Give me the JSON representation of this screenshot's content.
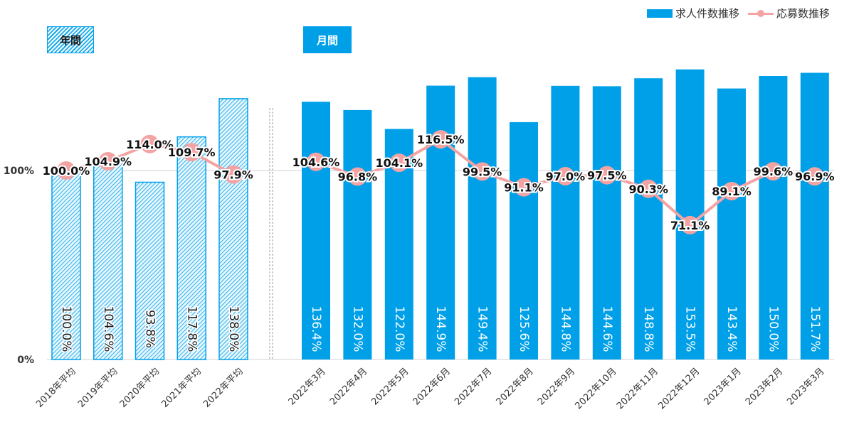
{
  "legend": {
    "bar_label": "求人件数推移",
    "line_label": "応募数推移"
  },
  "tags": {
    "annual": "年間",
    "monthly": "月間"
  },
  "colors": {
    "bar": "#00a0e9",
    "line": "#f4a3a3",
    "grid": "#d0d0d0",
    "hatch_bg": "#e6f6fd"
  },
  "chart_data": [
    {
      "type": "bar",
      "panel": "年間",
      "categories": [
        "2018年平均",
        "2019年平均",
        "2020年平均",
        "2021年平均",
        "2022年平均"
      ],
      "series": [
        {
          "name": "求人件数推移",
          "type": "bar",
          "values": [
            100.0,
            104.6,
            93.8,
            117.8,
            138.0
          ],
          "labels": [
            "100.0%",
            "104.6%",
            "93.8%",
            "117.8%",
            "138.0%"
          ],
          "style": "hatched"
        },
        {
          "name": "応募数推移",
          "type": "line",
          "values": [
            100.0,
            104.9,
            114.0,
            109.7,
            97.9
          ],
          "labels": [
            "100.0%",
            "104.9%",
            "114.0%",
            "109.7%",
            "97.9%"
          ]
        }
      ],
      "yticks": [
        "0%",
        "100%"
      ],
      "ylim": [
        0,
        150
      ]
    },
    {
      "type": "bar",
      "panel": "月間",
      "categories": [
        "2022年3月",
        "2022年4月",
        "2022年5月",
        "2022年6月",
        "2022年7月",
        "2022年8月",
        "2022年9月",
        "2022年10月",
        "2022年11月",
        "2022年12月",
        "2023年1月",
        "2023年2月",
        "2023年3月"
      ],
      "series": [
        {
          "name": "求人件数推移",
          "type": "bar",
          "values": [
            136.4,
            132.0,
            122.0,
            144.9,
            149.4,
            125.6,
            144.8,
            144.6,
            148.8,
            153.5,
            143.4,
            150.0,
            151.7
          ],
          "labels": [
            "136.4%",
            "132.0%",
            "122.0%",
            "144.9%",
            "149.4%",
            "125.6%",
            "144.8%",
            "144.6%",
            "148.8%",
            "153.5%",
            "143.4%",
            "150.0%",
            "151.7%"
          ],
          "style": "solid"
        },
        {
          "name": "応募数推移",
          "type": "line",
          "values": [
            104.6,
            96.8,
            104.1,
            116.5,
            99.5,
            91.1,
            97.0,
            97.5,
            90.3,
            71.1,
            89.1,
            99.6,
            96.9
          ],
          "labels": [
            "104.6%",
            "96.8%",
            "104.1%",
            "116.5%",
            "99.5%",
            "91.1%",
            "97.0%",
            "97.5%",
            "90.3%",
            "71.1%",
            "89.1%",
            "99.6%",
            "96.9%"
          ]
        }
      ],
      "ylim": [
        0,
        150
      ]
    }
  ]
}
